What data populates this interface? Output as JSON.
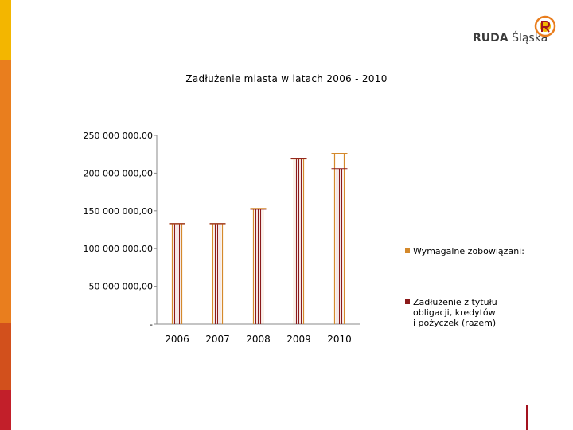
{
  "brand": {
    "name_bold": "RUDA",
    "name_rest": "Śląska",
    "colors": {
      "stripe_top": "#f3b600",
      "stripe_mid": "#e97e1e",
      "stripe_low": "#d2501c",
      "stripe_bottom": "#c21f2a",
      "accent": "#a3121f"
    },
    "icon": "city-logo-icon"
  },
  "chart_data": {
    "type": "bar",
    "title": "Zadłużenie miasta w latach 2006 - 2010",
    "categories": [
      "2006",
      "2007",
      "2008",
      "2009",
      "2010"
    ],
    "series": [
      {
        "name": "Wymagalne zobowiązania",
        "color": "#d4892b",
        "values": [
          133000000,
          133000000,
          153000000,
          219000000,
          226000000
        ]
      },
      {
        "name": "Zadłużenie z tytułu obligacji, kredytów i pożyczek (razem)",
        "color": "#8b1a1a",
        "values": [
          133000000,
          133000000,
          152000000,
          219000000,
          206000000
        ]
      }
    ],
    "y_ticks": [
      {
        "value": 0,
        "label": "-"
      },
      {
        "value": 50000000,
        "label": "50 000 000,00"
      },
      {
        "value": 100000000,
        "label": "100 000 000,00"
      },
      {
        "value": 150000000,
        "label": "150 000 000,00"
      },
      {
        "value": 200000000,
        "label": "200 000 000,00"
      },
      {
        "value": 250000000,
        "label": "250 000 000,00"
      }
    ],
    "ylim": [
      0,
      250000000
    ],
    "grid": false,
    "legend_position": "right"
  },
  "legend": {
    "item1": "Wymagalne zobowiązani:",
    "item2": "Zadłużenie z tytułu\nobligacji, kredytów\ni pożyczek (razem)"
  }
}
